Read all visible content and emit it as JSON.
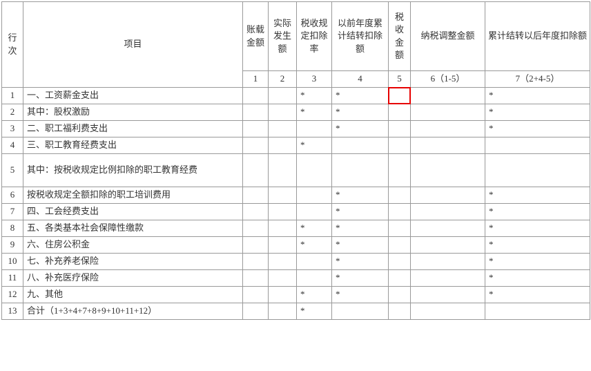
{
  "columns": {
    "rownum": "行次",
    "item": "项目",
    "c1": "账载金额",
    "c2": "实际发生额",
    "c3": "税收规定扣除率",
    "c4": "以前年度累计结转扣除额",
    "c5": "税收金额",
    "c6": "纳税调整金额",
    "c7": "累计结转以后年度扣除额"
  },
  "subcolumns": {
    "c1": "1",
    "c2": "2",
    "c3": "3",
    "c4": "4",
    "c5": "5",
    "c6": "6（1-5）",
    "c7": "7（2+4-5）"
  },
  "highlight": {
    "row": 1,
    "col": 5
  },
  "rows": [
    {
      "num": "1",
      "label": "一、工资薪金支出",
      "marks": [
        3,
        4,
        7
      ]
    },
    {
      "num": "2",
      "label": "其中：股权激励",
      "marks": [
        3,
        4,
        7
      ]
    },
    {
      "num": "3",
      "label": "二、职工福利费支出",
      "marks": [
        4,
        7
      ]
    },
    {
      "num": "4",
      "label": "三、职工教育经费支出",
      "marks": [
        3
      ]
    },
    {
      "num": "5",
      "label": "其中：按税收规定比例扣除的职工教育经费",
      "marks": [],
      "tall": true
    },
    {
      "num": "6",
      "label": "按税收规定全额扣除的职工培训费用",
      "marks": [
        4,
        7
      ]
    },
    {
      "num": "7",
      "label": "四、工会经费支出",
      "marks": [
        4,
        7
      ]
    },
    {
      "num": "8",
      "label": "五、各类基本社会保障性缴款",
      "marks": [
        3,
        4,
        7
      ]
    },
    {
      "num": "9",
      "label": "六、住房公积金",
      "marks": [
        3,
        4,
        7
      ]
    },
    {
      "num": "10",
      "label": "七、补充养老保险",
      "marks": [
        4,
        7
      ]
    },
    {
      "num": "11",
      "label": "八、补充医疗保险",
      "marks": [
        4,
        7
      ]
    },
    {
      "num": "12",
      "label": "九、其他",
      "marks": [
        3,
        4,
        7
      ]
    },
    {
      "num": "13",
      "label": "合计（1+3+4+7+8+9+10+11+12）",
      "marks": [
        3
      ]
    }
  ],
  "mark_char": "*"
}
